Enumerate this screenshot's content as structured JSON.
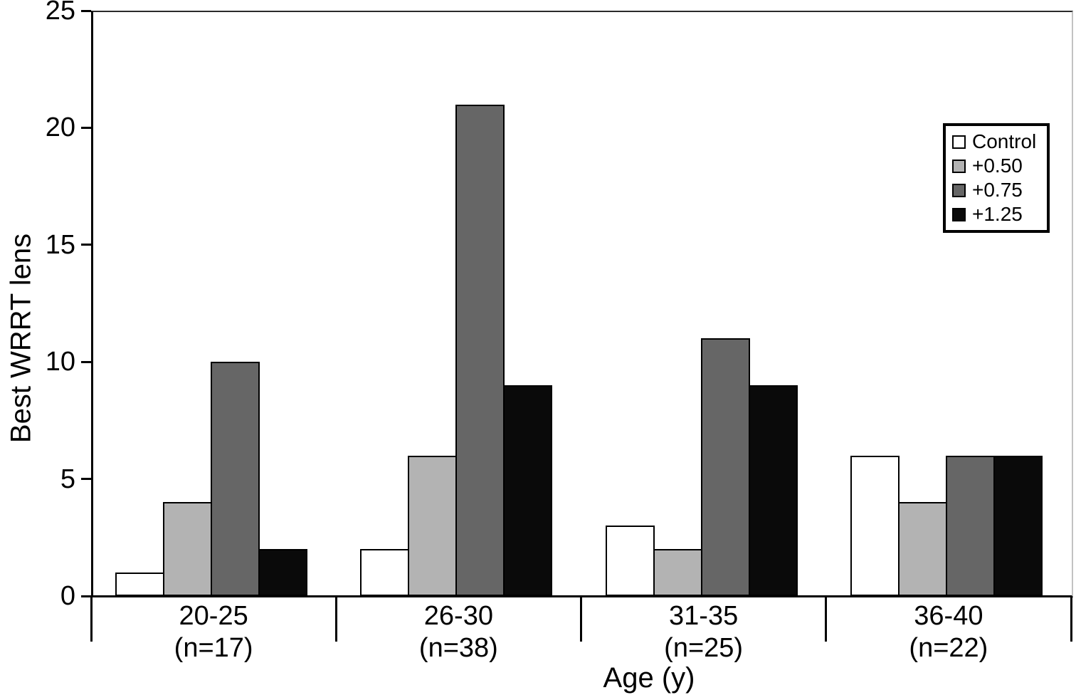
{
  "chart_data": {
    "type": "bar",
    "title": "",
    "xlabel": "Age (y)",
    "ylabel": "Best WRRT lens",
    "ylim": [
      0,
      25
    ],
    "yticks": [
      0,
      5,
      10,
      15,
      20,
      25
    ],
    "grid": false,
    "categories": [
      "20-25",
      "26-30",
      "31-35",
      "36-40"
    ],
    "category_sublabels": [
      "(n=17)",
      "(n=38)",
      "(n=25)",
      "(n=22)"
    ],
    "series": [
      {
        "name": "Control",
        "color": "#ffffff",
        "values": [
          1,
          2,
          3,
          6
        ]
      },
      {
        "name": "+0.50",
        "color": "#b3b3b3",
        "values": [
          4,
          6,
          2,
          4
        ]
      },
      {
        "name": "+0.75",
        "color": "#666666",
        "values": [
          10,
          21,
          11,
          6
        ]
      },
      {
        "name": "+1.25",
        "color": "#0a0a0a",
        "values": [
          2,
          9,
          9,
          6
        ]
      }
    ],
    "legend": {
      "position": "upper-right",
      "entries": [
        "Control",
        "+0.50",
        "+0.75",
        "+1.25"
      ]
    },
    "bar_edge_color": "#000000",
    "axis_color": "#000000"
  }
}
